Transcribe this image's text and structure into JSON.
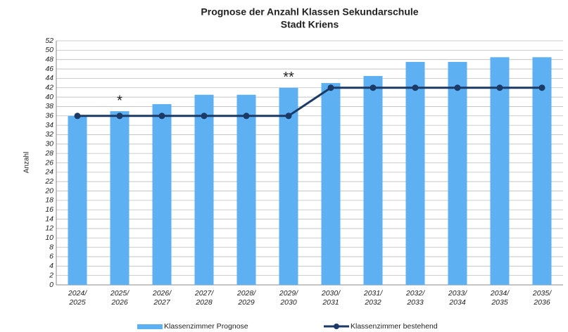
{
  "chart_data": {
    "type": "bar",
    "title": "Prognose der Anzahl Klassen Sekundarschule",
    "subtitle": "Stadt Kriens",
    "y_label": "Anzahl",
    "categories": [
      "2024/\n2025",
      "2025/\n2026",
      "2026/\n2027",
      "2027/\n2028",
      "2028/\n2029",
      "2029/\n2030",
      "2030/\n2031",
      "2031/\n2032",
      "2032/\n2033",
      "2033/\n2034",
      "2034/\n2035",
      "2035/\n2036"
    ],
    "series": [
      {
        "name": "Klassenzimmer Prognose",
        "type": "bar",
        "color": "#5db0f2",
        "values": [
          36,
          37,
          38.5,
          40.5,
          40.5,
          42,
          43,
          44.5,
          47.5,
          47.5,
          48.5,
          48.5
        ]
      },
      {
        "name": "Klassenzimmer bestehend",
        "type": "line",
        "color": "#1b3a66",
        "values": [
          36,
          36,
          36,
          36,
          36,
          36,
          42,
          42,
          42,
          42,
          42,
          42
        ]
      }
    ],
    "annotations": [
      {
        "text": "*",
        "category": "2025/\n2026"
      },
      {
        "text": "**",
        "category": "2029/\n2030"
      }
    ],
    "ylim": [
      0,
      52
    ],
    "yticks": [
      0,
      2,
      4,
      6,
      8,
      10,
      12,
      14,
      16,
      18,
      20,
      22,
      24,
      26,
      28,
      30,
      32,
      34,
      36,
      38,
      40,
      42,
      44,
      46,
      48,
      50,
      52
    ],
    "grid": true,
    "legend": "bottom"
  }
}
